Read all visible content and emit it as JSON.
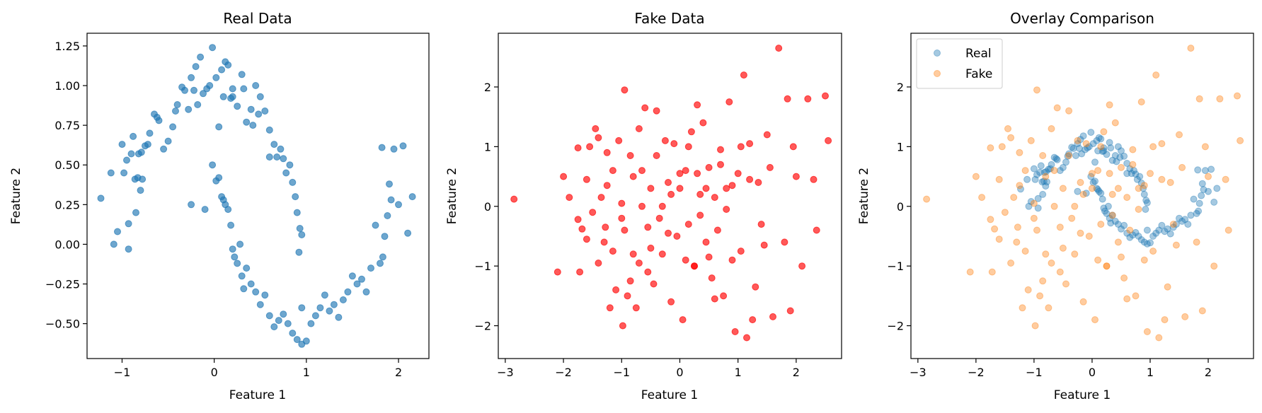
{
  "chart_data": [
    {
      "type": "scatter",
      "title": "Real Data",
      "xlabel": "Feature 1",
      "ylabel": "Feature 2",
      "xlim": [
        -1.38,
        2.33
      ],
      "ylim": [
        -0.72,
        1.33
      ],
      "xticks": [
        -1,
        0,
        1,
        2
      ],
      "yticks": [
        -0.5,
        -0.25,
        0.0,
        0.25,
        0.5,
        0.75,
        1.0,
        1.25
      ],
      "ytick_labels": [
        "−0.50",
        "−0.25",
        "0.00",
        "0.25",
        "0.50",
        "0.75",
        "1.00",
        "1.25"
      ],
      "legend": false,
      "series": [
        {
          "color": "#1f77b4",
          "opacity": 0.65,
          "points": [
            [
              -1.23,
              0.29
            ],
            [
              -1.12,
              0.45
            ],
            [
              -1.09,
              0.0
            ],
            [
              -1.05,
              0.08
            ],
            [
              -1.0,
              0.63
            ],
            [
              -0.98,
              0.45
            ],
            [
              -0.95,
              0.53
            ],
            [
              -0.93,
              0.13
            ],
            [
              -0.93,
              -0.03
            ],
            [
              -0.9,
              0.57
            ],
            [
              -0.88,
              0.68
            ],
            [
              -0.86,
              0.41
            ],
            [
              -0.85,
              0.2
            ],
            [
              -0.83,
              0.42
            ],
            [
              -0.82,
              0.57
            ],
            [
              -0.8,
              0.34
            ],
            [
              -0.79,
              0.58
            ],
            [
              -0.78,
              0.41
            ],
            [
              -0.75,
              0.62
            ],
            [
              -0.72,
              0.63
            ],
            [
              -0.7,
              0.7
            ],
            [
              -0.65,
              0.82
            ],
            [
              -0.62,
              0.8
            ],
            [
              -0.6,
              0.78
            ],
            [
              -0.55,
              0.6
            ],
            [
              -0.5,
              0.65
            ],
            [
              -0.45,
              0.74
            ],
            [
              -0.42,
              0.84
            ],
            [
              -0.4,
              0.88
            ],
            [
              -0.35,
              0.99
            ],
            [
              -0.32,
              0.97
            ],
            [
              -0.28,
              0.85
            ],
            [
              -0.25,
              1.05
            ],
            [
              -0.22,
              0.97
            ],
            [
              -0.2,
              1.12
            ],
            [
              -0.18,
              0.88
            ],
            [
              -0.15,
              1.18
            ],
            [
              -0.12,
              0.95
            ],
            [
              -0.08,
              0.98
            ],
            [
              -0.05,
              1.0
            ],
            [
              -0.02,
              1.24
            ],
            [
              0.02,
              1.05
            ],
            [
              0.05,
              0.74
            ],
            [
              0.08,
              1.1
            ],
            [
              0.1,
              0.93
            ],
            [
              0.12,
              1.15
            ],
            [
              0.15,
              1.13
            ],
            [
              0.18,
              0.92
            ],
            [
              0.2,
              0.98
            ],
            [
              0.25,
              0.87
            ],
            [
              0.3,
              1.07
            ],
            [
              0.32,
              0.98
            ],
            [
              0.35,
              0.77
            ],
            [
              0.4,
              0.85
            ],
            [
              0.42,
              0.75
            ],
            [
              0.45,
              1.0
            ],
            [
              0.48,
              0.82
            ],
            [
              0.5,
              0.93
            ],
            [
              0.55,
              0.84
            ],
            [
              0.6,
              0.72
            ],
            [
              0.65,
              0.63
            ],
            [
              0.68,
              0.55
            ],
            [
              0.72,
              0.6
            ],
            [
              0.75,
              0.54
            ],
            [
              0.78,
              0.45
            ],
            [
              0.82,
              0.5
            ],
            [
              0.85,
              0.39
            ],
            [
              0.88,
              0.3
            ],
            [
              0.9,
              0.2
            ],
            [
              0.93,
              0.1
            ],
            [
              0.95,
              0.06
            ],
            [
              0.92,
              -0.05
            ],
            [
              -0.02,
              0.5
            ],
            [
              0.02,
              0.4
            ],
            [
              0.05,
              0.42
            ],
            [
              0.08,
              0.3
            ],
            [
              0.1,
              0.28
            ],
            [
              0.12,
              0.25
            ],
            [
              0.15,
              0.22
            ],
            [
              0.18,
              0.12
            ],
            [
              0.2,
              -0.03
            ],
            [
              0.22,
              -0.08
            ],
            [
              0.25,
              -0.12
            ],
            [
              0.28,
              0.0
            ],
            [
              0.3,
              -0.2
            ],
            [
              0.32,
              -0.28
            ],
            [
              0.35,
              -0.15
            ],
            [
              0.4,
              -0.25
            ],
            [
              0.45,
              -0.3
            ],
            [
              0.5,
              -0.38
            ],
            [
              0.55,
              -0.32
            ],
            [
              0.6,
              -0.45
            ],
            [
              0.65,
              -0.52
            ],
            [
              0.7,
              -0.48
            ],
            [
              0.75,
              -0.44
            ],
            [
              0.8,
              -0.5
            ],
            [
              0.85,
              -0.56
            ],
            [
              0.9,
              -0.6
            ],
            [
              0.95,
              -0.63
            ],
            [
              1.0,
              -0.61
            ],
            [
              1.05,
              -0.5
            ],
            [
              1.1,
              -0.45
            ],
            [
              1.15,
              -0.4
            ],
            [
              1.2,
              -0.32
            ],
            [
              1.25,
              -0.42
            ],
            [
              1.3,
              -0.38
            ],
            [
              1.35,
              -0.46
            ],
            [
              1.4,
              -0.35
            ],
            [
              1.45,
              -0.3
            ],
            [
              1.5,
              -0.2
            ],
            [
              1.55,
              -0.25
            ],
            [
              1.6,
              -0.22
            ],
            [
              1.65,
              -0.3
            ],
            [
              1.7,
              -0.15
            ],
            [
              1.75,
              0.12
            ],
            [
              1.8,
              -0.12
            ],
            [
              1.83,
              -0.08
            ],
            [
              1.85,
              0.05
            ],
            [
              1.88,
              0.18
            ],
            [
              1.9,
              0.38
            ],
            [
              1.92,
              0.28
            ],
            [
              1.95,
              0.6
            ],
            [
              2.0,
              0.25
            ],
            [
              2.05,
              0.62
            ],
            [
              2.1,
              0.07
            ],
            [
              2.15,
              0.3
            ],
            [
              1.82,
              0.61
            ],
            [
              -0.25,
              0.25
            ],
            [
              -0.1,
              0.22
            ],
            [
              0.2,
              0.93
            ],
            [
              0.6,
              0.55
            ],
            [
              0.95,
              -0.4
            ]
          ]
        }
      ]
    },
    {
      "type": "scatter",
      "title": "Fake Data",
      "xlabel": "Feature 1",
      "ylabel": "Feature 2",
      "xlim": [
        -3.12,
        2.78
      ],
      "ylim": [
        -2.55,
        2.9
      ],
      "xticks": [
        -3,
        -2,
        -1,
        0,
        1,
        2
      ],
      "yticks": [
        -2,
        -1,
        0,
        1,
        2
      ],
      "ytick_labels": [
        "−2",
        "−1",
        "0",
        "1",
        "2"
      ],
      "legend": false,
      "series": [
        {
          "color": "#ff0000",
          "opacity": 0.65,
          "points": [
            [
              -2.85,
              0.12
            ],
            [
              -2.1,
              -1.1
            ],
            [
              -2.0,
              0.5
            ],
            [
              -1.9,
              0.15
            ],
            [
              -1.75,
              0.98
            ],
            [
              -1.75,
              -0.22
            ],
            [
              -1.72,
              -1.1
            ],
            [
              -1.68,
              -0.38
            ],
            [
              -1.6,
              0.45
            ],
            [
              -1.55,
              1.0
            ],
            [
              -1.5,
              -0.1
            ],
            [
              -1.45,
              1.3
            ],
            [
              -1.4,
              1.15
            ],
            [
              -1.35,
              0.15
            ],
            [
              -1.3,
              -0.6
            ],
            [
              -1.28,
              -0.35
            ],
            [
              -1.25,
              0.9
            ],
            [
              -1.2,
              -1.7
            ],
            [
              -1.15,
              0.6
            ],
            [
              -1.1,
              -1.4
            ],
            [
              -1.05,
              1.1
            ],
            [
              -1.0,
              -0.2
            ],
            [
              -0.98,
              -2.0
            ],
            [
              -0.95,
              1.95
            ],
            [
              -0.9,
              -1.5
            ],
            [
              -0.85,
              0.85
            ],
            [
              -0.8,
              -0.8
            ],
            [
              -0.75,
              -1.7
            ],
            [
              -0.7,
              1.3
            ],
            [
              -0.65,
              0.6
            ],
            [
              -0.6,
              1.65
            ],
            [
              -0.55,
              -1.1
            ],
            [
              -0.5,
              0.3
            ],
            [
              -0.45,
              -1.3
            ],
            [
              -0.4,
              0.85
            ],
            [
              -0.35,
              -0.2
            ],
            [
              -0.3,
              -0.8
            ],
            [
              -0.25,
              1.1
            ],
            [
              -0.2,
              0.4
            ],
            [
              -0.15,
              -1.6
            ],
            [
              -0.1,
              1.05
            ],
            [
              -0.05,
              -0.5
            ],
            [
              0.0,
              0.3
            ],
            [
              0.05,
              -1.9
            ],
            [
              0.1,
              0.6
            ],
            [
              0.15,
              -0.3
            ],
            [
              0.2,
              1.25
            ],
            [
              0.25,
              -1.0
            ],
            [
              0.3,
              1.7
            ],
            [
              0.35,
              0.2
            ],
            [
              0.4,
              1.4
            ],
            [
              0.45,
              -0.6
            ],
            [
              0.5,
              0.65
            ],
            [
              0.55,
              -1.2
            ],
            [
              0.6,
              0.15
            ],
            [
              0.65,
              -0.4
            ],
            [
              0.7,
              0.95
            ],
            [
              0.75,
              -1.5
            ],
            [
              0.8,
              0.3
            ],
            [
              0.85,
              1.75
            ],
            [
              0.9,
              -0.9
            ],
            [
              0.95,
              -2.1
            ],
            [
              1.0,
              0.55
            ],
            [
              1.05,
              1.0
            ],
            [
              1.1,
              2.2
            ],
            [
              1.15,
              -2.2
            ],
            [
              1.2,
              0.45
            ],
            [
              1.25,
              -1.9
            ],
            [
              1.3,
              -1.35
            ],
            [
              1.35,
              0.4
            ],
            [
              1.4,
              -0.3
            ],
            [
              1.5,
              1.2
            ],
            [
              1.6,
              -1.85
            ],
            [
              1.7,
              2.65
            ],
            [
              1.8,
              -0.6
            ],
            [
              1.85,
              1.8
            ],
            [
              1.9,
              -1.75
            ],
            [
              2.0,
              0.5
            ],
            [
              2.1,
              -1.0
            ],
            [
              2.2,
              1.8
            ],
            [
              2.3,
              0.45
            ],
            [
              2.35,
              -0.4
            ],
            [
              2.5,
              1.85
            ],
            [
              2.55,
              1.1
            ],
            [
              1.55,
              0.65
            ],
            [
              -0.5,
              -0.7
            ],
            [
              -1.0,
              0.05
            ],
            [
              0.25,
              -1.0
            ],
            [
              -0.3,
              0.0
            ],
            [
              0.8,
              -0.05
            ],
            [
              -0.2,
              -0.45
            ],
            [
              0.0,
              0.55
            ],
            [
              -0.65,
              0.0
            ],
            [
              0.45,
              0.3
            ],
            [
              -1.15,
              -0.75
            ],
            [
              0.9,
              0.35
            ],
            [
              -0.85,
              -1.25
            ],
            [
              0.1,
              -0.9
            ],
            [
              -0.4,
              1.6
            ],
            [
              0.6,
              -1.55
            ],
            [
              1.95,
              1.0
            ],
            [
              -1.4,
              -0.95
            ],
            [
              1.2,
              1.05
            ],
            [
              -0.8,
              0.5
            ],
            [
              0.35,
              -0.15
            ],
            [
              -0.15,
              0.2
            ],
            [
              0.7,
              0.7
            ],
            [
              -0.55,
              -0.35
            ],
            [
              1.45,
              -0.65
            ],
            [
              -1.6,
              -0.55
            ],
            [
              0.15,
              1.0
            ],
            [
              -1.25,
              0.35
            ],
            [
              0.5,
              -0.85
            ],
            [
              -0.95,
              -0.4
            ],
            [
              1.05,
              -0.75
            ],
            [
              0.3,
              0.55
            ],
            [
              -0.7,
              -0.95
            ]
          ]
        }
      ]
    },
    {
      "type": "scatter",
      "title": "Overlay Comparison",
      "xlabel": "Feature 1",
      "ylabel": "Feature 2",
      "xlim": [
        -3.12,
        2.78
      ],
      "ylim": [
        -2.55,
        2.9
      ],
      "xticks": [
        -3,
        -2,
        -1,
        0,
        1,
        2
      ],
      "yticks": [
        -2,
        -1,
        0,
        1,
        2
      ],
      "ytick_labels": [
        "−2",
        "−1",
        "0",
        "1",
        "2"
      ],
      "legend": true,
      "legend_position": "top-left",
      "series": [
        {
          "name": "Real",
          "color": "#1f77b4",
          "opacity": 0.4,
          "source": 0
        },
        {
          "name": "Fake",
          "color": "#ff7f0e",
          "opacity": 0.4,
          "source": 1
        }
      ]
    }
  ],
  "tick_text": {
    "x_-3": "−3",
    "x_-2": "−2",
    "x_-1": "−1",
    "x_0": "0",
    "x_1": "1",
    "x_2": "2"
  }
}
